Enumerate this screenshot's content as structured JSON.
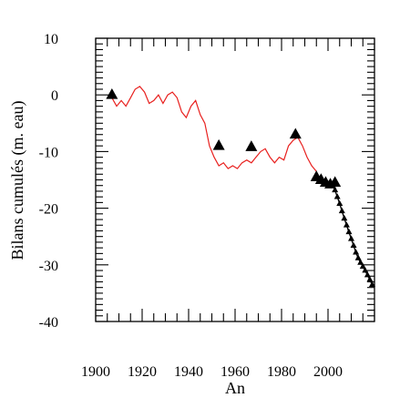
{
  "chart_data": {
    "type": "line",
    "title": "",
    "xlabel": "An",
    "ylabel": "Bilans cumulés (m. eau)",
    "xlim": [
      1900,
      2020
    ],
    "ylim": [
      -40,
      10
    ],
    "x_ticks": [
      1900,
      1920,
      1940,
      1960,
      1980,
      2000
    ],
    "y_ticks": [
      10,
      0,
      -10,
      -20,
      -30,
      -40
    ],
    "x_tick_labels": [
      "1900",
      "1920",
      "1940",
      "1960",
      "1980",
      "2000"
    ],
    "y_tick_labels": [
      "10",
      "0",
      "-10",
      "-20",
      "-30",
      "-40"
    ],
    "grid": false,
    "series": [
      {
        "kind": "line",
        "color": "#e8201e",
        "x": [
          1907,
          1909,
          1911,
          1913,
          1915,
          1917,
          1919,
          1921,
          1923,
          1925,
          1927,
          1929,
          1931,
          1933,
          1935,
          1937,
          1939,
          1941,
          1943,
          1945,
          1947,
          1949,
          1951,
          1953,
          1955,
          1957,
          1959,
          1961,
          1963,
          1965,
          1967,
          1969,
          1971,
          1973,
          1975,
          1977,
          1979,
          1981,
          1983,
          1985,
          1987,
          1989,
          1991,
          1993,
          1995
        ],
        "y": [
          -0.5,
          -2.0,
          -1.0,
          -2.0,
          -0.5,
          1.0,
          1.5,
          0.5,
          -1.5,
          -1.0,
          0.0,
          -1.5,
          0.0,
          0.5,
          -0.5,
          -3.0,
          -4.0,
          -2.0,
          -1.0,
          -3.5,
          -5.0,
          -9.0,
          -11.0,
          -12.5,
          -12.0,
          -13.0,
          -12.5,
          -13.0,
          -12.0,
          -11.5,
          -12.0,
          -11.0,
          -10.0,
          -9.5,
          -11.0,
          -12.0,
          -11.0,
          -11.5,
          -9.0,
          -8.0,
          -7.5,
          -9.0,
          -11.0,
          -12.5,
          -13.5
        ]
      },
      {
        "kind": "markers",
        "marker": "triangle-large",
        "color": "#000000",
        "x": [
          1907,
          1953,
          1967,
          1986,
          1995,
          1997,
          1999,
          2001,
          2003
        ],
        "y": [
          0.0,
          -9.0,
          -9.2,
          -7.0,
          -14.5,
          -15.0,
          -15.5,
          -15.8,
          -15.5
        ]
      },
      {
        "kind": "line-markers",
        "marker": "triangle-small",
        "color": "#000000",
        "x": [
          2002,
          2003,
          2004,
          2005,
          2006,
          2007,
          2008,
          2009,
          2010,
          2011,
          2012,
          2013,
          2014,
          2015,
          2016,
          2017,
          2018,
          2019
        ],
        "y": [
          -15.8,
          -16.8,
          -18.0,
          -19.2,
          -20.5,
          -21.8,
          -23.0,
          -24.2,
          -25.4,
          -26.6,
          -27.8,
          -28.8,
          -29.6,
          -30.3,
          -31.0,
          -31.8,
          -32.6,
          -33.5
        ]
      }
    ]
  }
}
